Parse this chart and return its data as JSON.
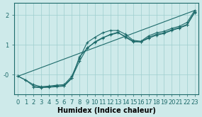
{
  "bg_color": "#ceeaea",
  "line_color": "#1e6b6b",
  "grid_color": "#9ecece",
  "xlabel": "Humidex (Indice chaleur)",
  "xlabel_fontsize": 7,
  "tick_fontsize": 6,
  "yticks": [
    0,
    1,
    2
  ],
  "ytick_labels": [
    "-0",
    "1",
    "2"
  ],
  "ylim": [
    -0.65,
    2.4
  ],
  "xlim": [
    -0.5,
    23.5
  ],
  "xticks": [
    0,
    1,
    2,
    3,
    4,
    5,
    6,
    7,
    8,
    9,
    10,
    11,
    12,
    13,
    14,
    15,
    16,
    17,
    18,
    19,
    20,
    21,
    22,
    23
  ],
  "line1_x": [
    0,
    1,
    2,
    3,
    4,
    5,
    6,
    7,
    8,
    9,
    10,
    11,
    12,
    13,
    14,
    15,
    16,
    17,
    18,
    19,
    20,
    21,
    22,
    23
  ],
  "line1_y": [
    -0.05,
    -0.18,
    -0.33,
    -0.4,
    -0.38,
    -0.35,
    -0.33,
    -0.05,
    0.55,
    1.08,
    1.25,
    1.4,
    1.48,
    1.48,
    1.35,
    1.15,
    1.12,
    1.3,
    1.4,
    1.45,
    1.55,
    1.62,
    1.75,
    2.15
  ],
  "line2_x": [
    0,
    1,
    2,
    3,
    4,
    5,
    6,
    7,
    8,
    9,
    10,
    11,
    12,
    13,
    14,
    15,
    16,
    17,
    18,
    19,
    20,
    21,
    22,
    23
  ],
  "line2_y": [
    -0.05,
    -0.18,
    -0.38,
    -0.42,
    -0.4,
    -0.38,
    -0.36,
    -0.1,
    0.45,
    0.9,
    1.08,
    1.22,
    1.35,
    1.42,
    1.25,
    1.1,
    1.1,
    1.25,
    1.35,
    1.4,
    1.5,
    1.58,
    1.68,
    2.1
  ],
  "line3_x": [
    2,
    3,
    4,
    5,
    6,
    7,
    8,
    9,
    10,
    11,
    12,
    13,
    14,
    15,
    16,
    17,
    18,
    19,
    20,
    21,
    22,
    23
  ],
  "line3_y": [
    -0.42,
    -0.43,
    -0.42,
    -0.4,
    -0.38,
    -0.12,
    0.6,
    0.88,
    1.1,
    1.24,
    1.33,
    1.4,
    1.28,
    1.12,
    1.1,
    1.22,
    1.32,
    1.38,
    1.48,
    1.56,
    1.66,
    2.08
  ],
  "line4_x": [
    0,
    23
  ],
  "line4_y": [
    -0.05,
    2.15
  ]
}
